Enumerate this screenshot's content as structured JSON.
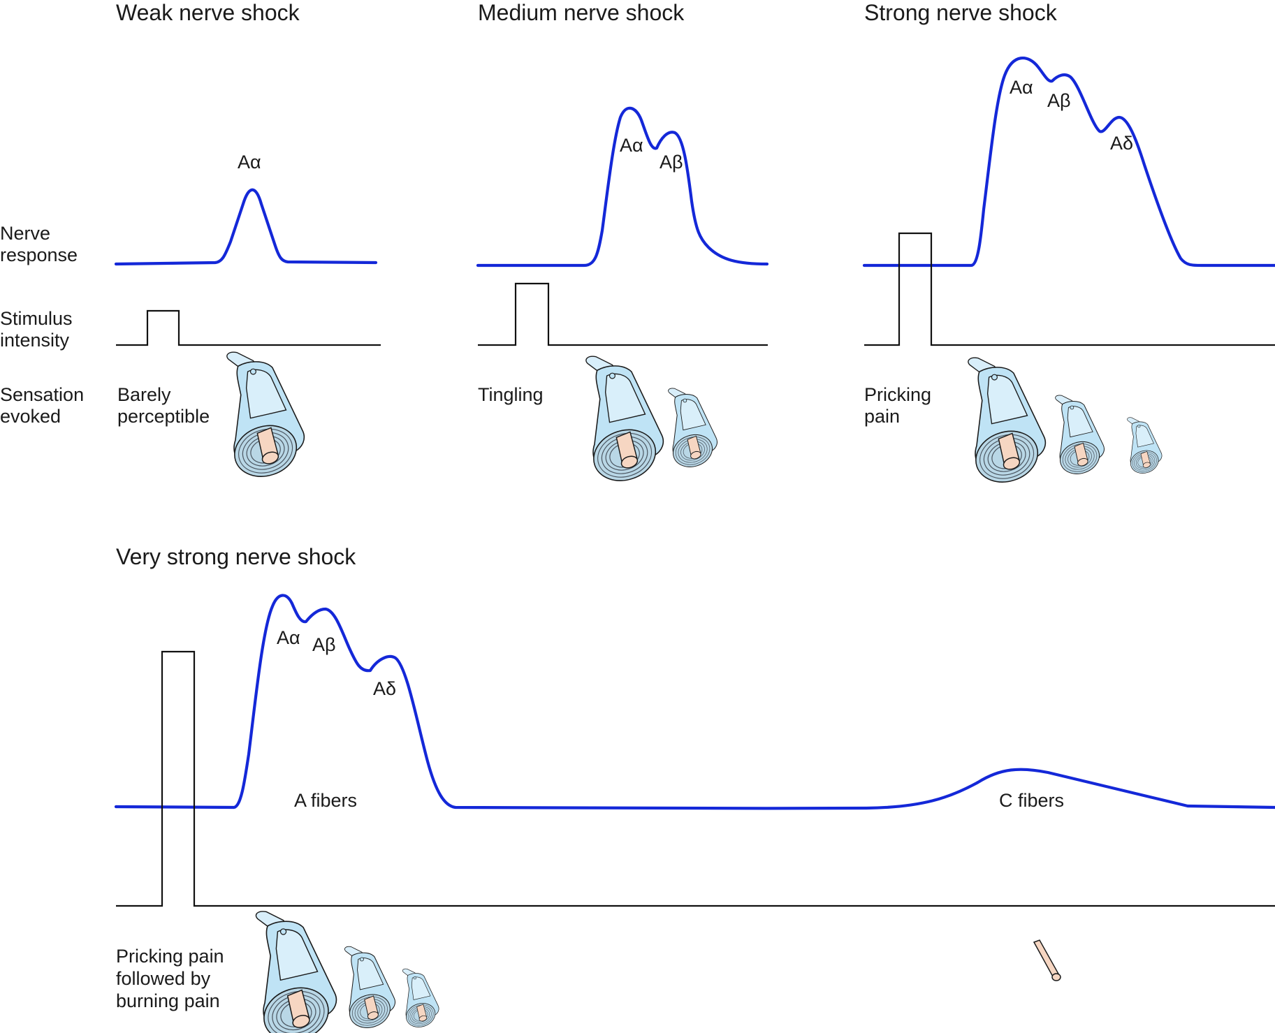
{
  "panels": {
    "weak": {
      "title": "Weak nerve shock",
      "sensation": [
        "Barely",
        "perceptible"
      ],
      "peaks": [
        "Aα"
      ]
    },
    "medium": {
      "title": "Medium nerve shock",
      "sensation": [
        "Tingling"
      ],
      "peaks": [
        "Aα",
        "Aβ"
      ]
    },
    "strong": {
      "title": "Strong nerve shock",
      "sensation": [
        "Pricking",
        "pain"
      ],
      "peaks": [
        "Aα",
        "Aβ",
        "Aδ"
      ]
    },
    "very_strong": {
      "title": "Very strong nerve shock",
      "sensation": [
        "Pricking pain",
        "followed by",
        "burning pain"
      ],
      "peaks": [
        "Aα",
        "Aβ",
        "Aδ"
      ],
      "group_labels": [
        "A fibers",
        "C fibers"
      ]
    }
  },
  "row_labels": {
    "nerve_response": [
      "Nerve",
      "response"
    ],
    "stimulus_intensity": [
      "Stimulus",
      "intensity"
    ],
    "sensation_evoked": [
      "Sensation",
      "evoked"
    ]
  },
  "colors": {
    "trace": "#1428d8",
    "stimulus": "#111111",
    "fiber_sheath": "#bfe3f5",
    "fiber_core": "#f6d6c2"
  },
  "icons": [
    "myelinated-fiber-icon",
    "unmyelinated-fiber-icon"
  ]
}
